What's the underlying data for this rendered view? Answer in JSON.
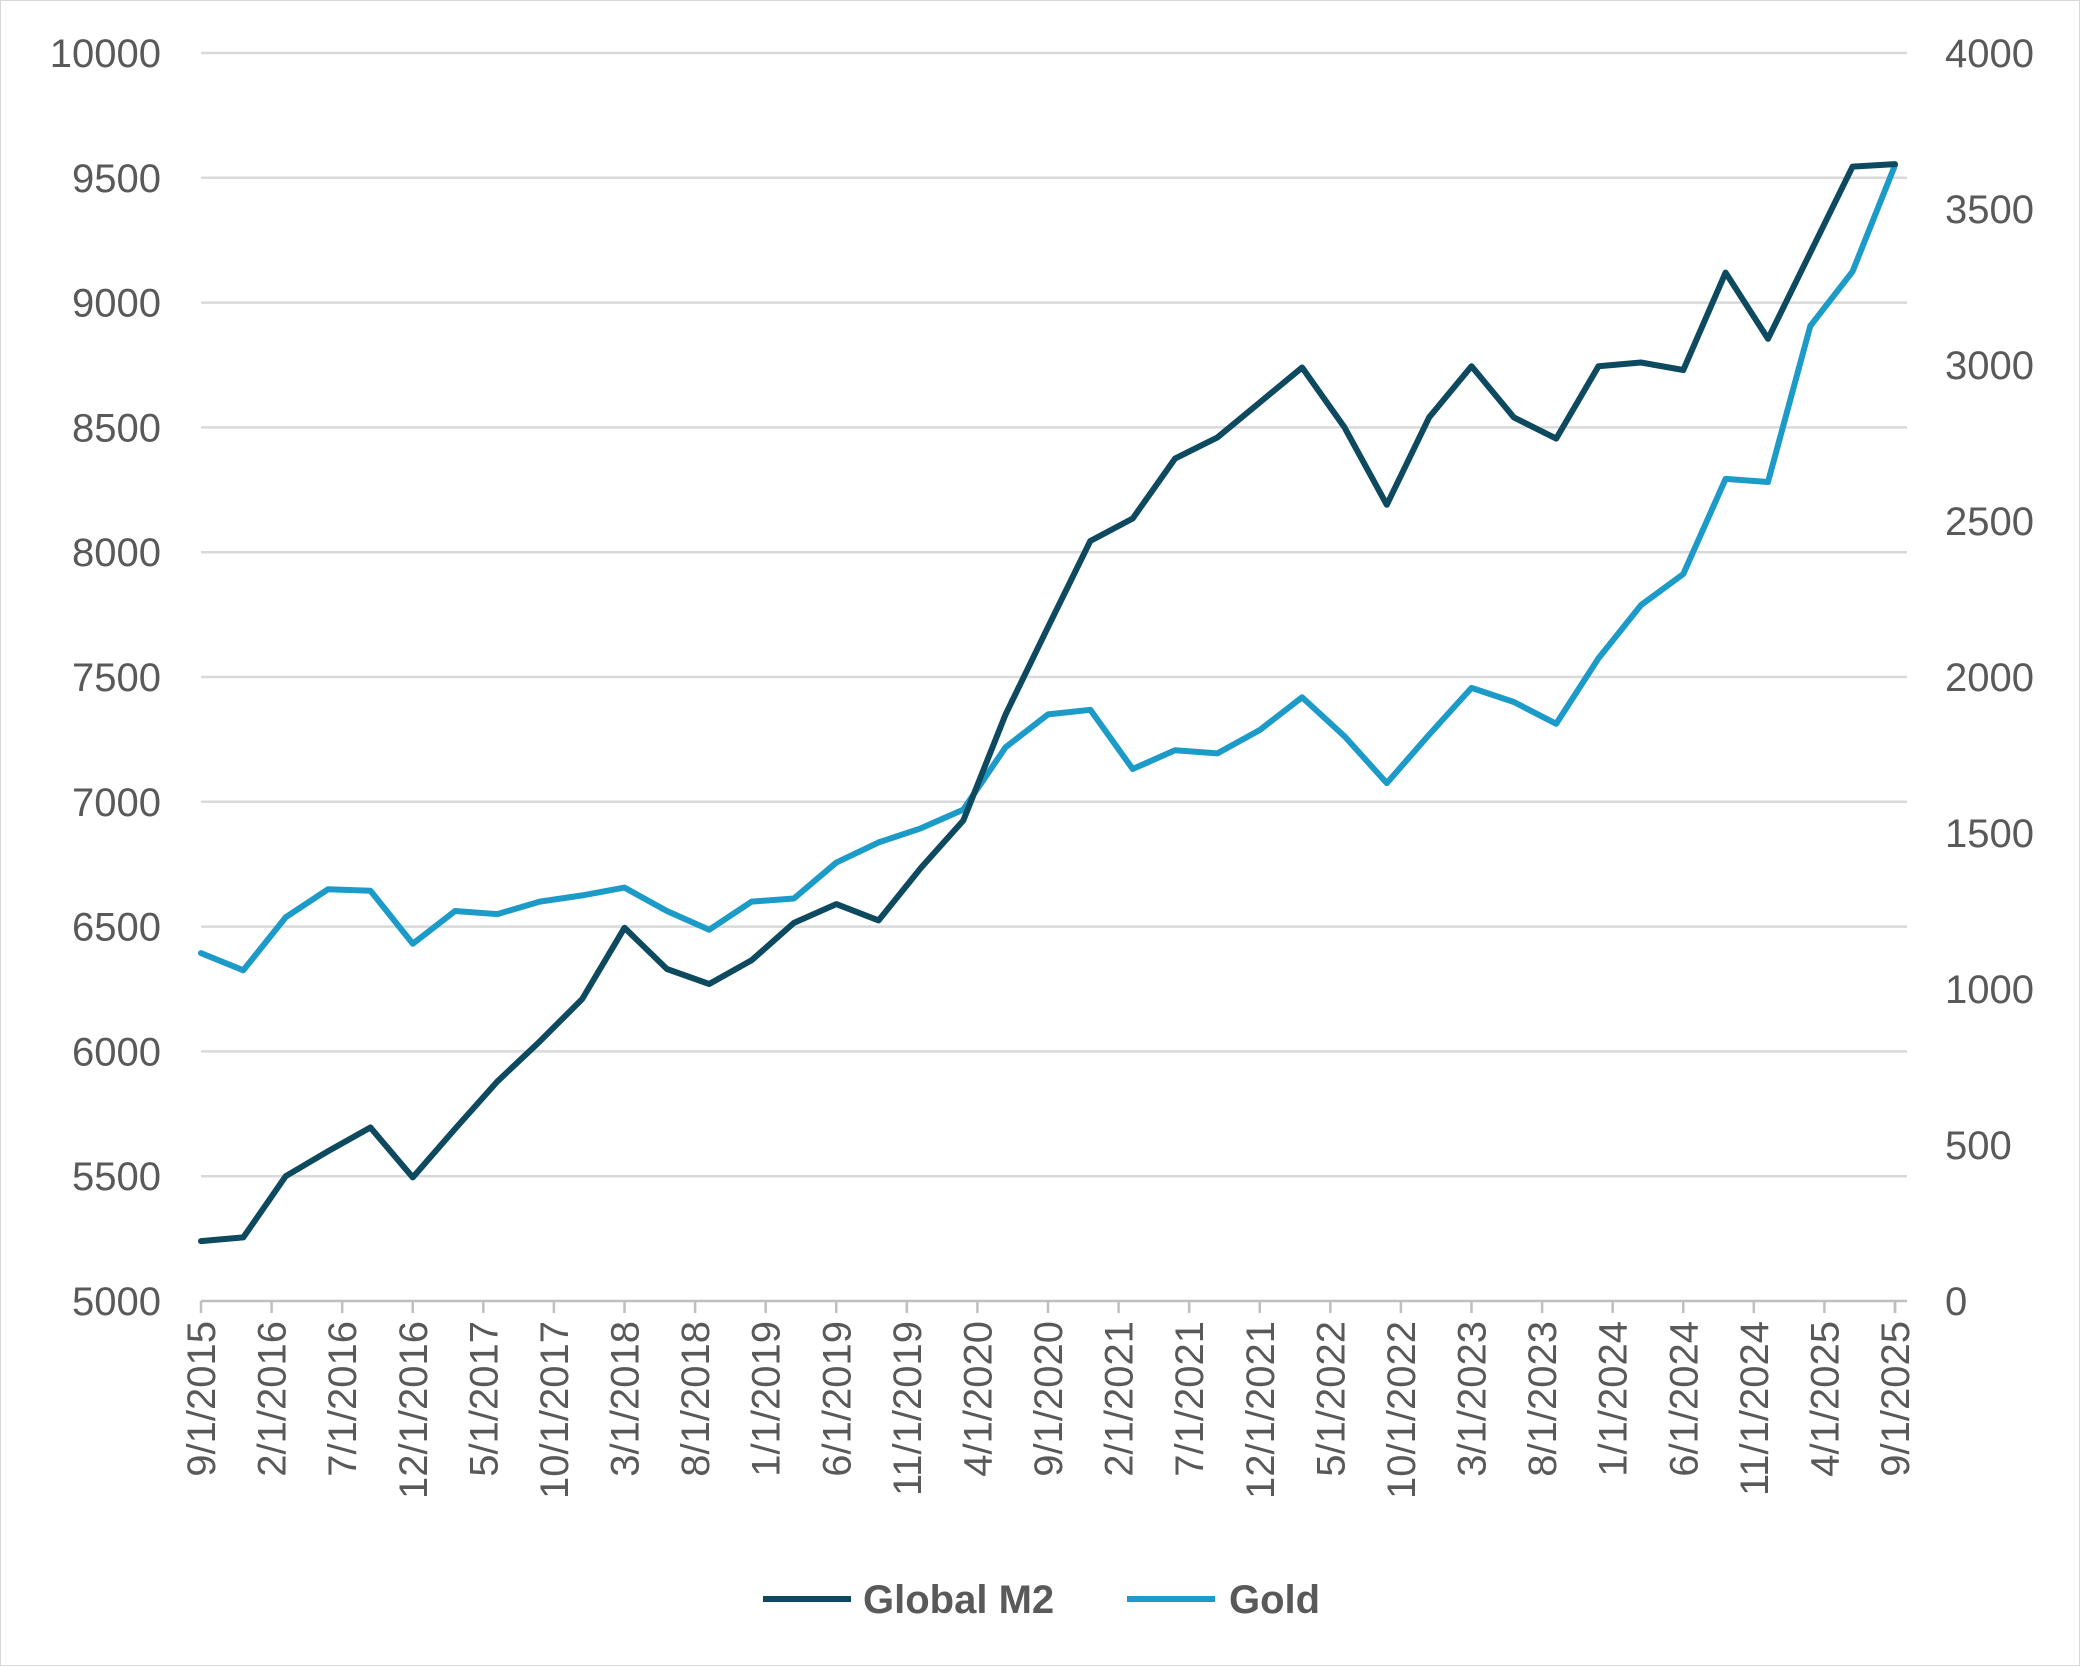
{
  "chart_data": {
    "type": "line",
    "title": "",
    "xlabel": "",
    "ylabel": "",
    "ylim_left": [
      5000,
      10000
    ],
    "ylim_right": [
      0,
      4000
    ],
    "yticks_left": [
      5000,
      5500,
      6000,
      6500,
      7000,
      7500,
      8000,
      8500,
      9000,
      9500,
      10000
    ],
    "yticks_right": [
      0,
      500,
      1000,
      1500,
      2000,
      2500,
      3000,
      3500,
      4000
    ],
    "x_tick_labels": [
      "9/1/2015",
      "2/1/2016",
      "7/1/2016",
      "12/1/2016",
      "5/1/2017",
      "10/1/2017",
      "3/1/2018",
      "8/1/2018",
      "1/1/2019",
      "6/1/2019",
      "11/1/2019",
      "4/1/2020",
      "9/1/2020",
      "2/1/2021",
      "7/1/2021",
      "12/1/2021",
      "5/1/2022",
      "10/1/2022",
      "3/1/2023",
      "8/1/2023",
      "1/1/2024",
      "6/1/2024",
      "11/1/2024",
      "4/1/2025",
      "9/1/2025"
    ],
    "x_months_span": 120,
    "legend_position": "bottom",
    "series": [
      {
        "name": "Global M2",
        "axis": "left",
        "color": "#0d4a5f",
        "points": [
          [
            0,
            5240
          ],
          [
            3,
            5255
          ],
          [
            6,
            5500
          ],
          [
            9,
            5600
          ],
          [
            12,
            5695
          ],
          [
            15,
            5495
          ],
          [
            18,
            5690
          ],
          [
            21,
            5880
          ],
          [
            24,
            6040
          ],
          [
            27,
            6210
          ],
          [
            30,
            6495
          ],
          [
            33,
            6330
          ],
          [
            36,
            6270
          ],
          [
            39,
            6365
          ],
          [
            42,
            6515
          ],
          [
            45,
            6590
          ],
          [
            48,
            6525
          ],
          [
            51,
            6735
          ],
          [
            54,
            6925
          ],
          [
            57,
            7350
          ],
          [
            60,
            7700
          ],
          [
            63,
            8045
          ],
          [
            66,
            8135
          ],
          [
            69,
            8375
          ],
          [
            72,
            8460
          ],
          [
            75,
            8600
          ],
          [
            78,
            8740
          ],
          [
            81,
            8500
          ],
          [
            84,
            8190
          ],
          [
            87,
            8540
          ],
          [
            90,
            8745
          ],
          [
            93,
            8540
          ],
          [
            96,
            8455
          ],
          [
            99,
            8745
          ],
          [
            102,
            8760
          ],
          [
            105,
            8730
          ],
          [
            108,
            9120
          ],
          [
            111,
            8855
          ],
          [
            114,
            9200
          ],
          [
            117,
            9545
          ],
          [
            120,
            9555
          ]
        ]
      },
      {
        "name": "Gold",
        "axis": "right",
        "color": "#1c9bc9",
        "points": [
          [
            0,
            1115
          ],
          [
            3,
            1060
          ],
          [
            6,
            1230
          ],
          [
            9,
            1320
          ],
          [
            12,
            1315
          ],
          [
            15,
            1145
          ],
          [
            18,
            1250
          ],
          [
            21,
            1240
          ],
          [
            24,
            1280
          ],
          [
            27,
            1300
          ],
          [
            30,
            1325
          ],
          [
            33,
            1250
          ],
          [
            36,
            1190
          ],
          [
            39,
            1280
          ],
          [
            42,
            1290
          ],
          [
            45,
            1405
          ],
          [
            48,
            1470
          ],
          [
            51,
            1515
          ],
          [
            54,
            1575
          ],
          [
            57,
            1775
          ],
          [
            60,
            1880
          ],
          [
            63,
            1895
          ],
          [
            66,
            1705
          ],
          [
            69,
            1765
          ],
          [
            72,
            1755
          ],
          [
            75,
            1830
          ],
          [
            78,
            1935
          ],
          [
            81,
            1810
          ],
          [
            84,
            1660
          ],
          [
            87,
            1815
          ],
          [
            90,
            1965
          ],
          [
            93,
            1920
          ],
          [
            96,
            1850
          ],
          [
            99,
            2060
          ],
          [
            102,
            2230
          ],
          [
            105,
            2330
          ],
          [
            108,
            2635
          ],
          [
            111,
            2625
          ],
          [
            114,
            3125
          ],
          [
            117,
            3300
          ],
          [
            120,
            3640
          ]
        ]
      }
    ]
  }
}
